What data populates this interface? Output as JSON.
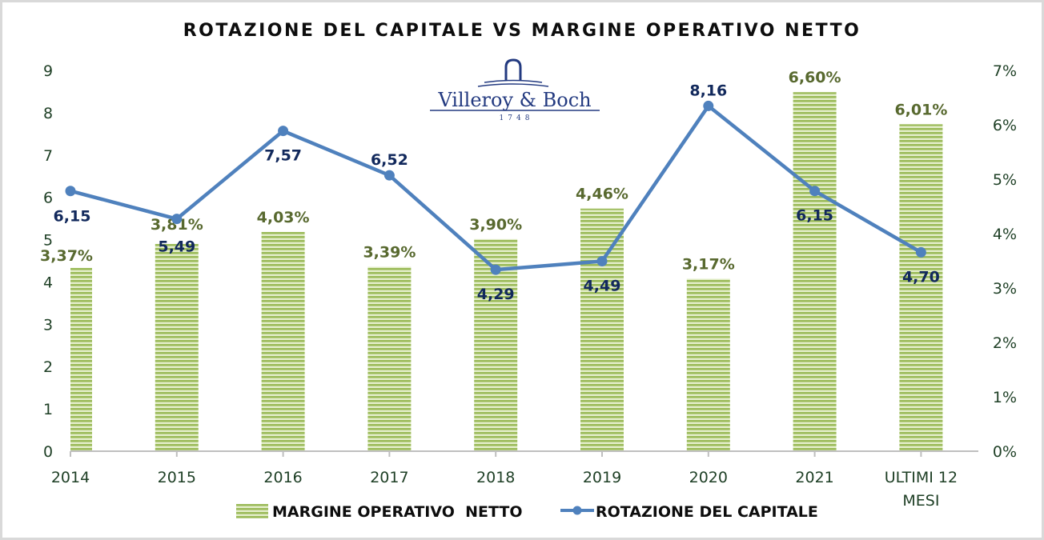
{
  "chart_data": {
    "type": "bar",
    "title": "ROTAZIONE DEL CAPITALE VS MARGINE OPERATIVO NETTO",
    "categories": [
      "2014",
      "2015",
      "2016",
      "2017",
      "2018",
      "2019",
      "2020",
      "2021",
      "ULTIMI 12 MESI"
    ],
    "category_lines": [
      [
        "2014"
      ],
      [
        "2015"
      ],
      [
        "2016"
      ],
      [
        "2017"
      ],
      [
        "2018"
      ],
      [
        "2019"
      ],
      [
        "2020"
      ],
      [
        "2021"
      ],
      [
        "ULTIMI 12",
        "MESI"
      ]
    ],
    "series": [
      {
        "name": "MARGINE OPERATIVO  NETTO",
        "type": "bar",
        "axis": "right",
        "values": [
          3.37,
          3.81,
          4.03,
          3.39,
          3.9,
          4.46,
          3.17,
          6.6,
          6.01
        ],
        "labels": [
          "3,37%",
          "3,81%",
          "4,03%",
          "3,39%",
          "3,90%",
          "4,46%",
          "3,17%",
          "6,60%",
          "6,01%"
        ],
        "color": "#9bbb59"
      },
      {
        "name": "ROTAZIONE DEL CAPITALE",
        "type": "line",
        "axis": "left",
        "values": [
          6.15,
          5.49,
          7.57,
          6.52,
          4.29,
          4.49,
          8.16,
          6.15,
          4.7
        ],
        "labels": [
          "6,15",
          "5,49",
          "7,57",
          "6,52",
          "4,29",
          "4,49",
          "8,16",
          "6,15",
          "4,70"
        ],
        "color": "#4f81bd"
      }
    ],
    "left_axis": {
      "ylim": [
        0,
        9
      ],
      "ticks": [
        "0",
        "1",
        "2",
        "3",
        "4",
        "5",
        "6",
        "7",
        "8",
        "9"
      ]
    },
    "right_axis": {
      "ylim": [
        0,
        7
      ],
      "unit": "%",
      "ticks": [
        "0%",
        "1%",
        "2%",
        "3%",
        "4%",
        "5%",
        "6%",
        "7%"
      ]
    },
    "xlabel": "",
    "ylabel": "",
    "grid": false,
    "legend": "bottom-center"
  },
  "logo": {
    "brand": "Villeroy & Boch",
    "year": "1748"
  },
  "colors": {
    "bar": "#9bbb59",
    "bar_light": "#e3edc9",
    "line": "#4f81bd",
    "bar_label": "#58692f",
    "line_label": "#12295c",
    "axis_text": "#1e3f25"
  }
}
